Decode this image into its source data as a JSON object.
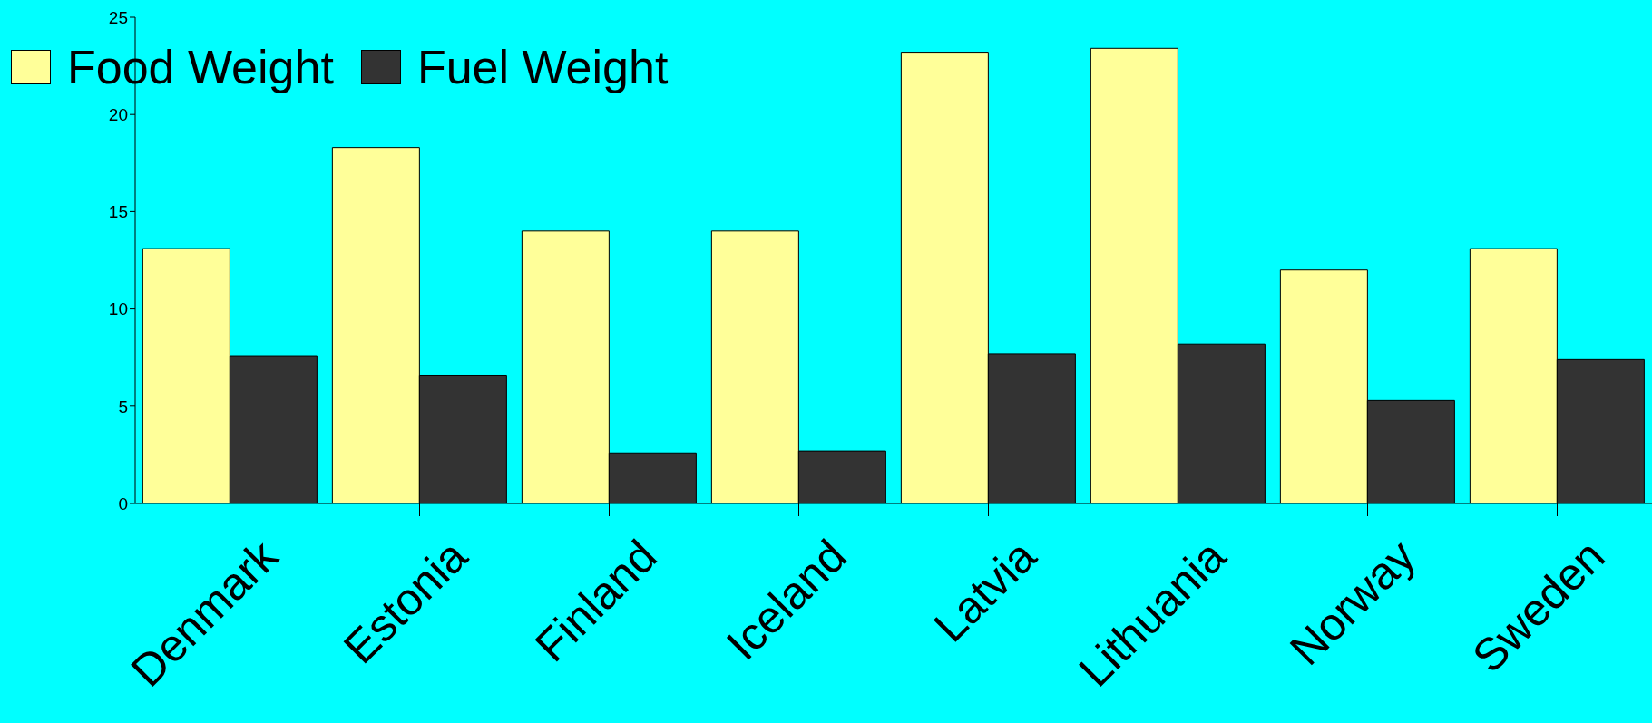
{
  "chart_data": {
    "type": "bar",
    "categories": [
      "Denmark",
      "Estonia",
      "Finland",
      "Iceland",
      "Latvia",
      "Lithuania",
      "Norway",
      "Sweden"
    ],
    "series": [
      {
        "name": "Food Weight",
        "color": "#ffff99",
        "values": [
          13.1,
          18.3,
          14.0,
          14.0,
          23.2,
          23.4,
          12.0,
          13.1
        ]
      },
      {
        "name": "Fuel Weight",
        "color": "#333333",
        "values": [
          7.6,
          6.6,
          2.6,
          2.7,
          7.7,
          8.2,
          5.3,
          7.4
        ]
      }
    ],
    "ylim": [
      0,
      25
    ],
    "yticks": [
      0,
      5,
      10,
      15,
      20,
      25
    ],
    "grid": false,
    "legend": "top left"
  }
}
